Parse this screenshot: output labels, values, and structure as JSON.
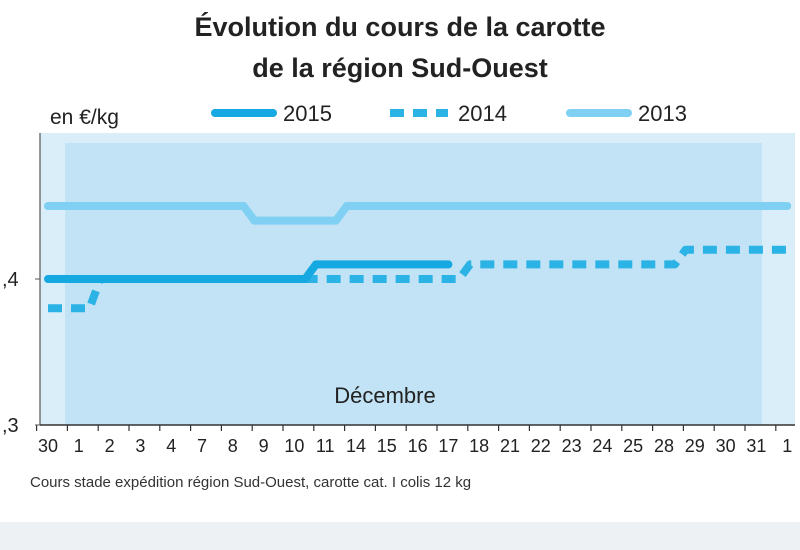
{
  "chart_data": {
    "type": "line",
    "title": "Évolution du cours de la carotte",
    "subtitle": "de la région Sud-Ouest",
    "ylabel": "en €/kg",
    "ytick_labels": [
      ",4",
      ",3"
    ],
    "ytick_values": [
      0.4,
      0.3
    ],
    "ylim": [
      0.3,
      0.5
    ],
    "categories": [
      "30",
      "1",
      "2",
      "3",
      "4",
      "7",
      "8",
      "9",
      "10",
      "11",
      "14",
      "15",
      "16",
      "17",
      "18",
      "21",
      "22",
      "23",
      "24",
      "25",
      "28",
      "29",
      "30",
      "31",
      "1"
    ],
    "annotation": "Décembre",
    "footnote": "Cours stade expédition région Sud-Ouest, carotte cat. I colis 12 kg",
    "legend_position": "top",
    "series": [
      {
        "name": "2015",
        "style": "solid",
        "color": "#16a8e0",
        "values": [
          0.4,
          0.4,
          0.4,
          0.4,
          0.4,
          0.4,
          0.4,
          0.4,
          0.4,
          0.41,
          0.41,
          0.41,
          0.41,
          0.41,
          null,
          null,
          null,
          null,
          null,
          null,
          null,
          null,
          null,
          null,
          null
        ]
      },
      {
        "name": "2014",
        "style": "dashed",
        "color": "#2bb3e6",
        "values": [
          0.38,
          0.38,
          0.4,
          0.4,
          0.4,
          0.4,
          0.4,
          0.4,
          0.4,
          0.4,
          0.4,
          0.4,
          0.4,
          0.4,
          0.41,
          0.41,
          0.41,
          0.41,
          0.41,
          0.41,
          0.41,
          0.42,
          0.42,
          0.42,
          0.42
        ]
      },
      {
        "name": "2013",
        "style": "solid",
        "color": "#7fd0f2",
        "values": [
          0.45,
          0.45,
          0.45,
          0.45,
          0.45,
          0.45,
          0.45,
          0.44,
          0.44,
          0.44,
          0.45,
          0.45,
          0.45,
          0.45,
          0.45,
          0.45,
          0.45,
          0.45,
          0.45,
          0.45,
          0.45,
          0.45,
          0.45,
          0.45,
          0.45
        ]
      }
    ]
  }
}
